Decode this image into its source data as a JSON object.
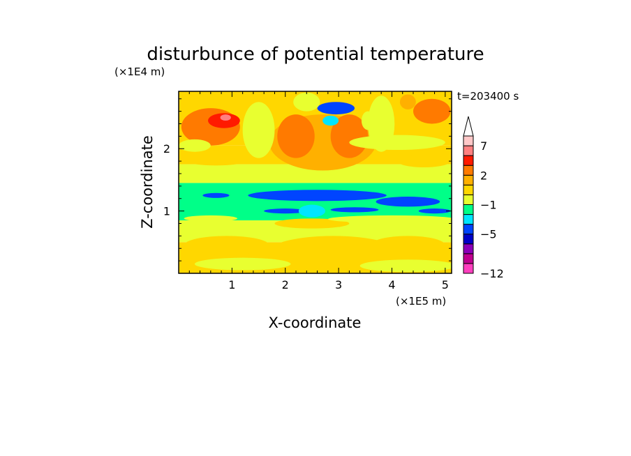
{
  "chart_data": {
    "type": "heatmap",
    "title": "disturbunce of potential temperature",
    "xlabel": "X-coordinate",
    "ylabel": "Z-coordinate",
    "x_scale_label": "(×1E5 m)",
    "y_scale_label": "(×1E4 m)",
    "time_label": "t=203400 s",
    "xlim": [
      0,
      5.12
    ],
    "ylim": [
      0,
      2.92
    ],
    "x_ticks": [
      1,
      2,
      3,
      4,
      5
    ],
    "y_ticks": [
      1,
      2
    ],
    "x_tick_labels": [
      "1",
      "2",
      "3",
      "4",
      "5"
    ],
    "y_tick_labels": [
      "1",
      "2"
    ],
    "colorbar": {
      "levels": [
        -12,
        -11,
        -9,
        -7,
        -5,
        -4,
        -3,
        -1,
        0,
        1,
        2,
        3,
        5,
        7,
        9
      ],
      "colors": [
        "#ff3fbf",
        "#c0008f",
        "#8c00b8",
        "#0000c8",
        "#0044ff",
        "#00e5ff",
        "#00ff88",
        "#e8ff30",
        "#ffd700",
        "#ffb000",
        "#ff7a00",
        "#ff1a00",
        "#ff8080",
        "#ffc8c8"
      ],
      "tick_labels": [
        {
          "value": -12,
          "label": "−12"
        },
        {
          "value": -5,
          "label": "−5"
        },
        {
          "value": -1,
          "label": "−1"
        },
        {
          "value": 2,
          "label": "2"
        },
        {
          "value": 7,
          "label": "7"
        }
      ],
      "extend": "max"
    },
    "regions": [
      {
        "kind": "band",
        "zmin": 0.0,
        "zmax": 0.5,
        "value": 0.6
      },
      {
        "kind": "band",
        "zmin": 0.5,
        "zmax": 0.85,
        "value": -0.4
      },
      {
        "kind": "band",
        "zmin": 0.85,
        "zmax": 1.45,
        "value": -2.0
      },
      {
        "kind": "band",
        "zmin": 1.45,
        "zmax": 1.75,
        "value": -0.5
      },
      {
        "kind": "band",
        "zmin": 1.75,
        "zmax": 2.05,
        "value": 0.3
      },
      {
        "kind": "band",
        "zmin": 2.05,
        "zmax": 2.92,
        "value": 0.6
      },
      {
        "kind": "blob",
        "x": 2.9,
        "z": 0.3,
        "rx": 1.3,
        "rz": 0.3,
        "value": 0.6
      },
      {
        "kind": "blob",
        "x": 0.9,
        "z": 0.45,
        "rx": 0.8,
        "rz": 0.15,
        "value": 0.5
      },
      {
        "kind": "blob",
        "x": 4.3,
        "z": 0.45,
        "rx": 0.7,
        "rz": 0.15,
        "value": 0.4
      },
      {
        "kind": "blob",
        "x": 2.5,
        "z": 0.8,
        "rx": 0.7,
        "rz": 0.08,
        "value": 0.4
      },
      {
        "kind": "blob",
        "x": 1.2,
        "z": 0.15,
        "rx": 0.9,
        "rz": 0.1,
        "value": -0.5
      },
      {
        "kind": "blob",
        "x": 4.3,
        "z": 0.12,
        "rx": 0.9,
        "rz": 0.1,
        "value": -0.4
      },
      {
        "kind": "blob",
        "x": 0.6,
        "z": 0.88,
        "rx": 0.5,
        "rz": 0.05,
        "value": -0.6
      },
      {
        "kind": "blob",
        "x": 4.0,
        "z": 0.87,
        "rx": 1.2,
        "rz": 0.06,
        "value": -0.6
      },
      {
        "kind": "blob",
        "x": 2.6,
        "z": 1.25,
        "rx": 1.3,
        "rz": 0.09,
        "value": -4.5
      },
      {
        "kind": "blob",
        "x": 4.3,
        "z": 1.15,
        "rx": 0.6,
        "rz": 0.08,
        "value": -4.5
      },
      {
        "kind": "blob",
        "x": 0.7,
        "z": 1.25,
        "rx": 0.25,
        "rz": 0.04,
        "value": -4.2
      },
      {
        "kind": "blob",
        "x": 2.0,
        "z": 1.0,
        "rx": 0.4,
        "rz": 0.04,
        "value": -4.2
      },
      {
        "kind": "blob",
        "x": 3.3,
        "z": 1.02,
        "rx": 0.45,
        "rz": 0.04,
        "value": -4.2
      },
      {
        "kind": "blob",
        "x": 4.8,
        "z": 1.0,
        "rx": 0.3,
        "rz": 0.04,
        "value": -4.1
      },
      {
        "kind": "blob",
        "x": 2.5,
        "z": 1.0,
        "rx": 0.25,
        "rz": 0.1,
        "value": -4.0
      },
      {
        "kind": "blob",
        "x": 0.7,
        "z": 1.85,
        "rx": 0.7,
        "rz": 0.12,
        "value": 0.6
      },
      {
        "kind": "blob",
        "x": 4.6,
        "z": 1.8,
        "rx": 0.5,
        "rz": 0.1,
        "value": 0.5
      },
      {
        "kind": "blob",
        "x": 2.7,
        "z": 2.1,
        "rx": 1.0,
        "rz": 0.45,
        "value": 1.7
      },
      {
        "kind": "blob",
        "x": 2.2,
        "z": 2.2,
        "rx": 0.35,
        "rz": 0.35,
        "value": 2.5
      },
      {
        "kind": "blob",
        "x": 3.2,
        "z": 2.2,
        "rx": 0.35,
        "rz": 0.35,
        "value": 2.5
      },
      {
        "kind": "blob",
        "x": 0.6,
        "z": 2.35,
        "rx": 0.55,
        "rz": 0.3,
        "value": 2.2
      },
      {
        "kind": "blob",
        "x": 0.85,
        "z": 2.45,
        "rx": 0.3,
        "rz": 0.12,
        "value": 3.3
      },
      {
        "kind": "blob",
        "x": 0.88,
        "z": 2.5,
        "rx": 0.1,
        "rz": 0.05,
        "value": 6.0
      },
      {
        "kind": "blob",
        "x": 4.75,
        "z": 2.6,
        "rx": 0.35,
        "rz": 0.2,
        "value": 2.2
      },
      {
        "kind": "blob",
        "x": 4.3,
        "z": 2.75,
        "rx": 0.15,
        "rz": 0.12,
        "value": 1.6
      },
      {
        "kind": "blob",
        "x": 0.3,
        "z": 2.05,
        "rx": 0.3,
        "rz": 0.1,
        "value": -0.5
      },
      {
        "kind": "blob",
        "x": 1.5,
        "z": 2.3,
        "rx": 0.3,
        "rz": 0.45,
        "value": -0.4
      },
      {
        "kind": "blob",
        "x": 3.8,
        "z": 2.4,
        "rx": 0.25,
        "rz": 0.45,
        "value": -0.4
      },
      {
        "kind": "blob",
        "x": 4.1,
        "z": 2.1,
        "rx": 0.9,
        "rz": 0.12,
        "value": -0.5
      },
      {
        "kind": "blob",
        "x": 2.95,
        "z": 2.65,
        "rx": 0.35,
        "rz": 0.1,
        "value": -4.2
      },
      {
        "kind": "blob",
        "x": 2.85,
        "z": 2.45,
        "rx": 0.15,
        "rz": 0.08,
        "value": -4.0
      },
      {
        "kind": "blob",
        "x": 3.55,
        "z": 2.45,
        "rx": 0.12,
        "rz": 0.15,
        "value": -0.5
      },
      {
        "kind": "blob",
        "x": 2.4,
        "z": 2.75,
        "rx": 0.25,
        "rz": 0.15,
        "value": -0.5
      }
    ]
  }
}
